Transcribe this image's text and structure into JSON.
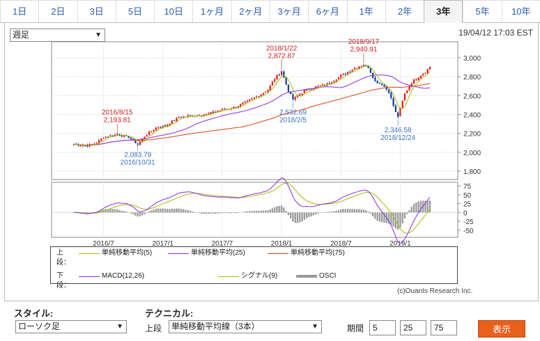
{
  "tabs": [
    {
      "label": "1日"
    },
    {
      "label": "2日"
    },
    {
      "label": "3日"
    },
    {
      "label": "5日"
    },
    {
      "label": "10日"
    },
    {
      "label": "1ヶ月"
    },
    {
      "label": "2ヶ月"
    },
    {
      "label": "3ヶ月"
    },
    {
      "label": "6ヶ月"
    },
    {
      "label": "1年"
    },
    {
      "label": "2年"
    },
    {
      "label": "3年"
    },
    {
      "label": "5年"
    },
    {
      "label": "10年"
    }
  ],
  "active_tab": "3年",
  "period_select": {
    "value": "週足"
  },
  "timestamp": "19/04/12 17:03 EST",
  "chart_data": [
    {
      "type": "line",
      "yticks": [
        "3,000",
        "2,800",
        "2,600",
        "2,400",
        "2,200",
        "2,000",
        "1,800"
      ],
      "ylim": [
        1800,
        3000
      ],
      "xticks": [
        "2016/7",
        "2017/1",
        "2017/7",
        "2018/1",
        "2018/7",
        "2019/1"
      ],
      "annotations": [
        {
          "date": "2016/8/15",
          "value": "2,193.81",
          "kind": "high"
        },
        {
          "date": "2016/10/31",
          "value": "2,083.79",
          "kind": "low"
        },
        {
          "date": "2018/1/22",
          "value": "2,872.87",
          "kind": "high"
        },
        {
          "date": "2018/2/5",
          "value": "2,532.69",
          "kind": "low"
        },
        {
          "date": "2018/9/17",
          "value": "2,940.91",
          "kind": "high"
        },
        {
          "date": "2018/12/24",
          "value": "2,346.58",
          "kind": "low"
        }
      ],
      "colors": {
        "up": "#e02020",
        "down": "#1a3fa0",
        "ma5": "#a8b800",
        "ma25": "#8a2be2",
        "ma75": "#e04010",
        "annot_high": "#d02020",
        "annot_low": "#3a70c8"
      }
    },
    {
      "type": "line",
      "yticks": [
        "75",
        "50",
        "25",
        "0",
        "-25",
        "-50"
      ],
      "ylim": [
        -70,
        85
      ],
      "colors": {
        "macd": "#8a2be2",
        "signal": "#a8b800",
        "osci": "#999999"
      }
    }
  ],
  "legend": {
    "upper_label": "上段：",
    "lower_label": "下段：",
    "upper_items": [
      {
        "name": "単純移動平均(5)",
        "color": "#a8b800"
      },
      {
        "name": "単純移動平均(25)",
        "color": "#8a2be2"
      },
      {
        "name": "単純移動平均(75)",
        "color": "#e04010"
      }
    ],
    "lower_items": [
      {
        "name": "MACD(12,26)",
        "color": "#8a2be2"
      },
      {
        "name": "シグナル(9)",
        "color": "#a8b800"
      },
      {
        "name": "OSCI",
        "color": "#999999"
      }
    ]
  },
  "copyright": "(c)Ouants Research Inc.",
  "controls": {
    "style_label": "スタイル:",
    "style_value": "ローソク足",
    "technical_label": "テクニカル:",
    "upper_label": "上段",
    "technical_value": "単純移動平均線（3本）",
    "period_label": "期間",
    "periods": [
      "5",
      "25",
      "75"
    ],
    "show_button": "表示"
  }
}
